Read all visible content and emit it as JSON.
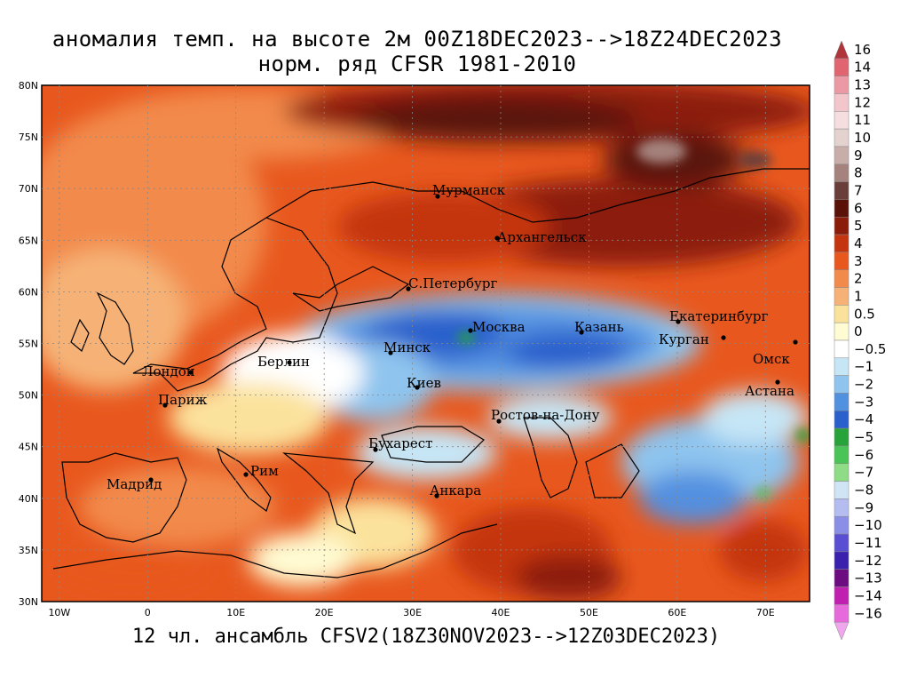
{
  "title_line1": "аномалия темп. на высоте 2м 00Z18DEC2023-->18Z24DEC2023",
  "title_line2": "норм. ряд CFSR 1981-2010",
  "footer": "12 чл. ансамбль CFSV2(18Z30NOV2023-->12Z03DEC2023)",
  "lat_labels": [
    "80N",
    "75N",
    "70N",
    "65N",
    "60N",
    "55N",
    "50N",
    "45N",
    "40N",
    "35N",
    "30N"
  ],
  "lon_labels": [
    "10W",
    "0",
    "10E",
    "20E",
    "30E",
    "40E",
    "50E",
    "60E",
    "70E"
  ],
  "cities": [
    {
      "name": "Мурманск"
    },
    {
      "name": "Архангельск"
    },
    {
      "name": "С.Петербург"
    },
    {
      "name": "Москва"
    },
    {
      "name": "Казань"
    },
    {
      "name": "Екатеринбург"
    },
    {
      "name": "Курган"
    },
    {
      "name": "Омск"
    },
    {
      "name": "Астана"
    },
    {
      "name": "Минск"
    },
    {
      "name": "Берлин"
    },
    {
      "name": "Лондон"
    },
    {
      "name": "Париж"
    },
    {
      "name": "Киев"
    },
    {
      "name": "Ростов-на-Дону"
    },
    {
      "name": "Бухарест"
    },
    {
      "name": "Мадрид"
    },
    {
      "name": "Рим"
    },
    {
      "name": "Анкара"
    }
  ],
  "colorbar": {
    "levels": [
      "16",
      "14",
      "13",
      "12",
      "11",
      "10",
      "9",
      "8",
      "7",
      "6",
      "5",
      "4",
      "3",
      "2",
      "1",
      "0.5",
      "0",
      "−0.5",
      "−1",
      "−2",
      "−3",
      "−4",
      "−5",
      "−6",
      "−7",
      "−8",
      "−9",
      "−10",
      "−11",
      "−12",
      "−13",
      "−14",
      "−16"
    ],
    "colors": [
      "#b0353a",
      "#e06570",
      "#eb9aa5",
      "#f2c6cb",
      "#f6dee0",
      "#e3d2ce",
      "#c8aea8",
      "#a5827d",
      "#6a3f3a",
      "#5a1208",
      "#8c1c0a",
      "#c4340e",
      "#e8581e",
      "#f28a4c",
      "#f6b276",
      "#fbe29c",
      "#fffbd2",
      "#ffffff",
      "#c6e6f6",
      "#8ec4ee",
      "#5290e0",
      "#2a60cc",
      "#27a33a",
      "#4ac456",
      "#8edc86",
      "#cfe5f5",
      "#b4bcf0",
      "#8a8ee6",
      "#5a4ed2",
      "#3a20ac",
      "#6c0c80",
      "#c020b0",
      "#e66adc",
      "#f0a6ec"
    ]
  }
}
